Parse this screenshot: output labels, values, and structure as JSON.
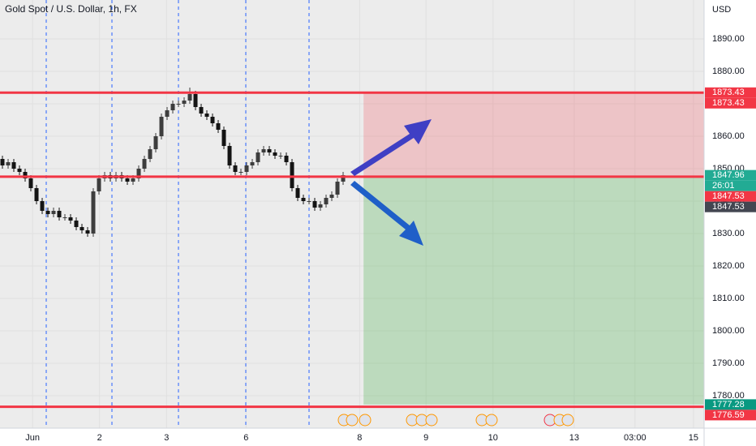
{
  "chart_data": {
    "type": "candlestick",
    "title": "Gold Spot / U.S. Dollar, 1h, FX",
    "currency": "USD",
    "x": [
      0,
      1,
      2,
      3,
      4,
      5,
      6,
      7,
      8,
      9,
      10,
      11,
      12,
      13,
      14,
      15,
      16,
      17,
      18,
      19,
      20,
      21,
      22,
      23,
      24,
      25,
      26,
      27,
      28,
      29,
      30,
      31,
      32,
      33,
      34,
      35,
      36,
      37,
      38,
      39,
      40,
      41,
      42,
      43,
      44,
      45,
      46,
      47,
      48,
      49,
      50,
      51,
      52,
      53,
      54,
      55,
      56,
      57,
      58,
      59,
      60
    ],
    "open": [
      1853,
      1851,
      1852,
      1850,
      1849,
      1847,
      1844,
      1840,
      1837,
      1836,
      1837,
      1835,
      1835,
      1834,
      1832,
      1831,
      1830,
      1843,
      1847,
      1848,
      1847,
      1848,
      1847,
      1846,
      1847,
      1850,
      1853,
      1856,
      1860,
      1866,
      1868,
      1870,
      1870,
      1871,
      1873,
      1869,
      1867,
      1866,
      1864,
      1862,
      1857,
      1851,
      1849,
      1849,
      1851,
      1852,
      1855,
      1856,
      1855,
      1854,
      1854,
      1852,
      1844,
      1841,
      1840,
      1840,
      1838,
      1839,
      1841,
      1842,
      1846
    ],
    "high": [
      1854,
      1853,
      1853,
      1851,
      1850,
      1848,
      1845,
      1841,
      1838,
      1838,
      1838,
      1836,
      1836,
      1835,
      1833,
      1832,
      1844,
      1848,
      1849,
      1849,
      1849,
      1849,
      1848,
      1848,
      1851,
      1854,
      1857,
      1861,
      1867,
      1869,
      1871,
      1871,
      1872,
      1875,
      1874,
      1870,
      1868,
      1867,
      1865,
      1863,
      1858,
      1852,
      1850,
      1852,
      1853,
      1856,
      1857,
      1857,
      1856,
      1855,
      1855,
      1853,
      1845,
      1842,
      1841,
      1841,
      1840,
      1842,
      1843,
      1847,
      1849
    ],
    "low": [
      1850,
      1850,
      1849,
      1848,
      1846,
      1843,
      1839,
      1836,
      1835,
      1835,
      1834,
      1834,
      1833,
      1831,
      1830,
      1829,
      1829,
      1842,
      1846,
      1846,
      1846,
      1846,
      1845,
      1845,
      1846,
      1849,
      1852,
      1855,
      1859,
      1865,
      1867,
      1869,
      1869,
      1870,
      1868,
      1866,
      1865,
      1863,
      1861,
      1856,
      1850,
      1848,
      1848,
      1848,
      1850,
      1851,
      1854,
      1854,
      1853,
      1853,
      1851,
      1843,
      1840,
      1839,
      1839,
      1837,
      1837,
      1838,
      1840,
      1841,
      1845
    ],
    "close": [
      1851,
      1852,
      1850,
      1849,
      1847,
      1844,
      1840,
      1837,
      1836,
      1837,
      1835,
      1835,
      1834,
      1832,
      1831,
      1830,
      1843,
      1847,
      1848,
      1847,
      1848,
      1847,
      1846,
      1847,
      1850,
      1853,
      1856,
      1860,
      1866,
      1868,
      1870,
      1870,
      1871,
      1873,
      1869,
      1867,
      1866,
      1864,
      1862,
      1857,
      1851,
      1849,
      1849,
      1851,
      1852,
      1855,
      1856,
      1855,
      1854,
      1854,
      1852,
      1844,
      1841,
      1840,
      1840,
      1838,
      1839,
      1841,
      1842,
      1846,
      1848
    ],
    "up_color": "#3d3d3d",
    "down_color": "#141414",
    "xlim": [
      -0.43,
      123.57
    ],
    "xticks": [
      {
        "value": 5.3,
        "label": "Jun"
      },
      {
        "value": 17.1,
        "label": "2"
      },
      {
        "value": 28.9,
        "label": "3"
      },
      {
        "value": 42.9,
        "label": "6"
      },
      {
        "value": 62.9,
        "label": "8"
      },
      {
        "value": 74.6,
        "label": "9"
      },
      {
        "value": 86.4,
        "label": "10"
      },
      {
        "value": 100.7,
        "label": "13"
      },
      {
        "value": 111.4,
        "label": "03:00"
      },
      {
        "value": 121.7,
        "label": "15"
      }
    ],
    "ylim": [
      1770,
      1902
    ],
    "yticks": [
      {
        "value": 1780,
        "label": "1780.00"
      },
      {
        "value": 1790,
        "label": "1790.00"
      },
      {
        "value": 1800,
        "label": "1800.00"
      },
      {
        "value": 1810,
        "label": "1810.00"
      },
      {
        "value": 1820,
        "label": "1820.00"
      },
      {
        "value": 1830,
        "label": "1830.00"
      },
      {
        "value": 1840,
        "label": "1840.00"
      },
      {
        "value": 1850,
        "label": "1850.00"
      },
      {
        "value": 1860,
        "label": "1860.00"
      },
      {
        "value": 1870,
        "label": "1870.00"
      },
      {
        "value": 1880,
        "label": "1880.00"
      },
      {
        "value": 1890,
        "label": "1890.00"
      }
    ],
    "grid": true,
    "levels": [
      {
        "value": 1873.43,
        "color": "#f23645"
      },
      {
        "value": 1847.53,
        "color": "#f23645"
      },
      {
        "value": 1776.59,
        "color": "#f23645"
      }
    ],
    "zones": [
      {
        "from": 1873.43,
        "to": 1847.53,
        "x_start": 63.6,
        "color": "rgba(242,54,69,0.22)"
      },
      {
        "from": 1847.53,
        "to": 1777.28,
        "x_start": 63.6,
        "color": "rgba(76,175,80,0.3)"
      }
    ],
    "price_labels": [
      {
        "value": 1873.43,
        "label": "1873.43",
        "color": "#f23645"
      },
      {
        "value": 1873.43,
        "label": "1873.43",
        "color": "#f23645"
      },
      {
        "value": 1847.96,
        "label": "1847.96",
        "color": "#22ab94"
      },
      {
        "label": "26:01",
        "color": "#22ab94"
      },
      {
        "value": 1847.53,
        "label": "1847.53",
        "color": "#f23645"
      },
      {
        "value": 1847.53,
        "label": "1847.53",
        "color": "#434651"
      },
      {
        "value": 1777.28,
        "label": "1777.28",
        "color": "#089981"
      },
      {
        "value": 1776.59,
        "label": "1776.59",
        "color": "#f23645"
      }
    ]
  }
}
